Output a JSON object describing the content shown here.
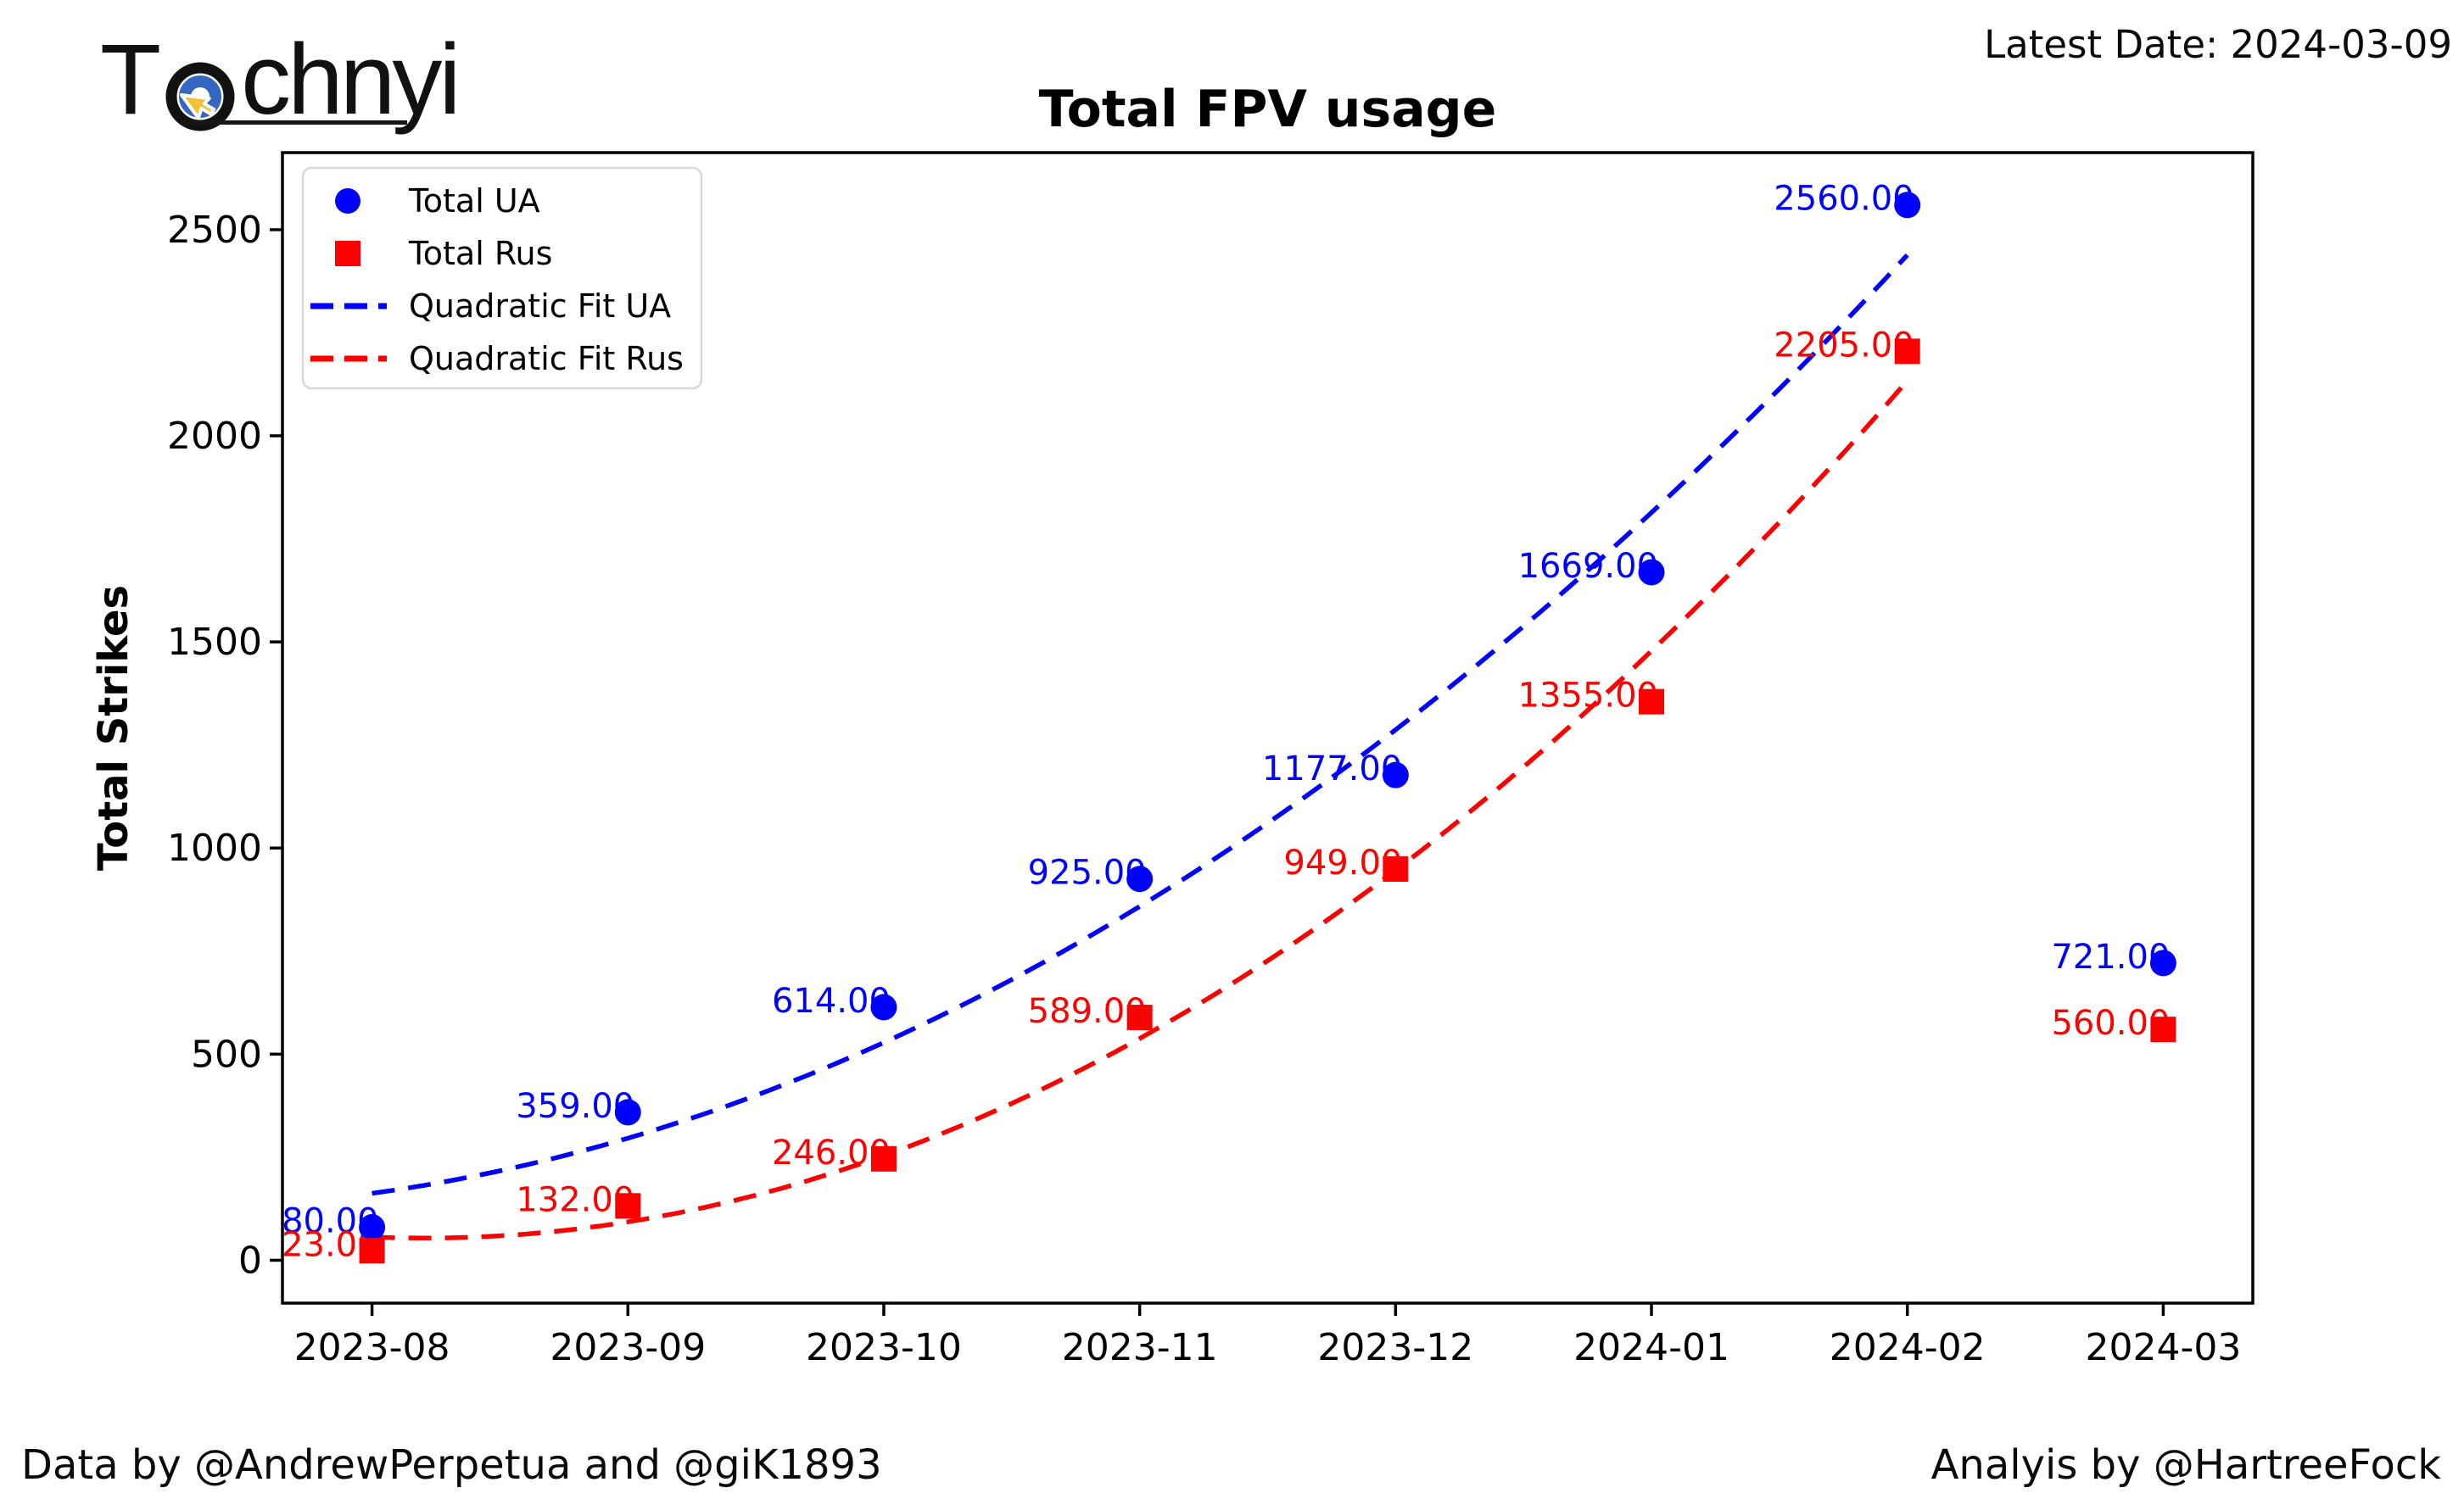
{
  "header": {
    "logo": {
      "prefix": "T",
      "suffix": "chnyi"
    },
    "latest_date": "Latest Date: 2024-03-09"
  },
  "footer": {
    "data_credit": "Data by @AndrewPerpetua and @giK1893",
    "analysis_credit": "Analyis by @HartreeFock"
  },
  "colors": {
    "ua_blue": "#0000ff",
    "rus_red": "#ff0000",
    "axis_black": "#000000",
    "legend_border": "#d9d9d9",
    "logo_yellow": "#f2c230",
    "logo_blue": "#3466c2"
  },
  "chart_data": {
    "type": "scatter",
    "title": "Total FPV usage",
    "xlabel": "",
    "ylabel": "Total Strikes",
    "categories": [
      "2023-08",
      "2023-09",
      "2023-10",
      "2023-11",
      "2023-12",
      "2024-01",
      "2024-02",
      "2024-03"
    ],
    "yticks": [
      0,
      500,
      1000,
      1500,
      2000,
      2500
    ],
    "ylim": [
      -104,
      2687
    ],
    "grid": false,
    "legend_position": "upper left",
    "series": [
      {
        "name": "Total UA",
        "marker": "circle",
        "color": "#0000ff",
        "values": [
          80,
          359,
          614,
          925,
          1177,
          1669,
          2560,
          721
        ]
      },
      {
        "name": "Total Rus",
        "marker": "square",
        "color": "#ff0000",
        "values": [
          23,
          132,
          246,
          589,
          949,
          1355,
          2205,
          560
        ]
      }
    ],
    "point_labels": {
      "Total UA": [
        "80.00",
        "359.00",
        "614.00",
        "925.00",
        "1177.00",
        "1669.00",
        "2560.00",
        "721.00"
      ],
      "Total Rus": [
        "23.00",
        "132.00",
        "246.00",
        "589.00",
        "949.00",
        "1355.00",
        "2205.00",
        "560.00"
      ]
    },
    "fits": [
      {
        "name": "Quadratic Fit UA",
        "series_index": 0,
        "color": "#0000ff",
        "style": "dashed",
        "fit_points": 7
      },
      {
        "name": "Quadratic Fit Rus",
        "series_index": 1,
        "color": "#ff0000",
        "style": "dashed",
        "fit_points": 7
      }
    ],
    "legend": [
      {
        "label": "Total UA",
        "marker": "circle",
        "color": "#0000ff"
      },
      {
        "label": "Total Rus",
        "marker": "square",
        "color": "#ff0000"
      },
      {
        "label": "Quadratic Fit UA",
        "marker": "dash",
        "color": "#0000ff"
      },
      {
        "label": "Quadratic Fit Rus",
        "marker": "dash",
        "color": "#ff0000"
      }
    ]
  }
}
